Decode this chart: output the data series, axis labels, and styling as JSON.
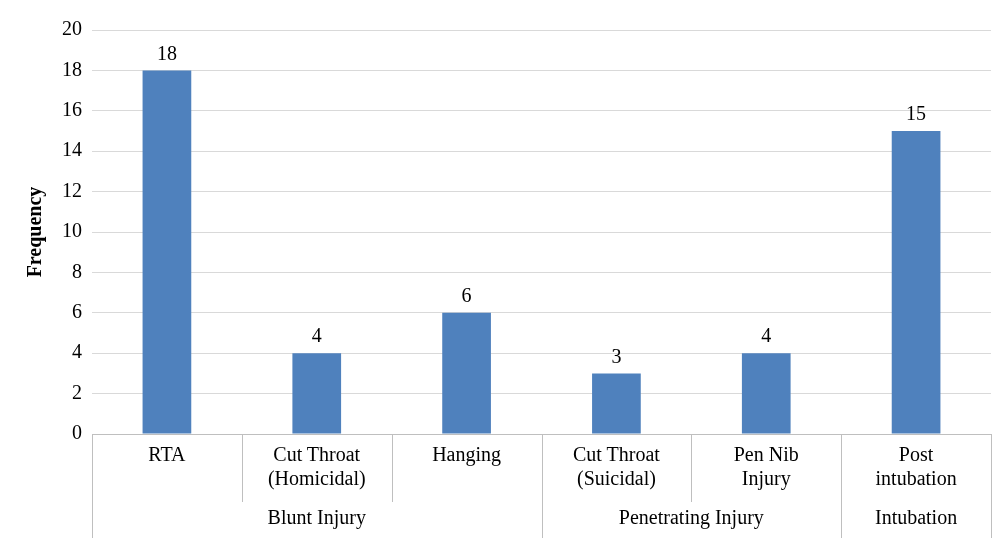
{
  "chart_data": {
    "type": "bar",
    "ylabel": "Frequency",
    "categories": [
      "RTA",
      "Cut Throat (Homicidal)",
      "Hanging",
      "Cut Throat (Suicidal)",
      "Pen Nib Injury",
      "Post intubation"
    ],
    "values": [
      18,
      4,
      6,
      3,
      4,
      15
    ],
    "color": "#4f81bd",
    "ylim": [
      0,
      20
    ],
    "yticks": [
      0,
      2,
      4,
      6,
      8,
      10,
      12,
      14,
      16,
      18,
      20
    ],
    "grid": "y",
    "data_labels": true,
    "annotations": [
      "Blunt Injury",
      "Penetrating Injury",
      "Intubation"
    ]
  }
}
